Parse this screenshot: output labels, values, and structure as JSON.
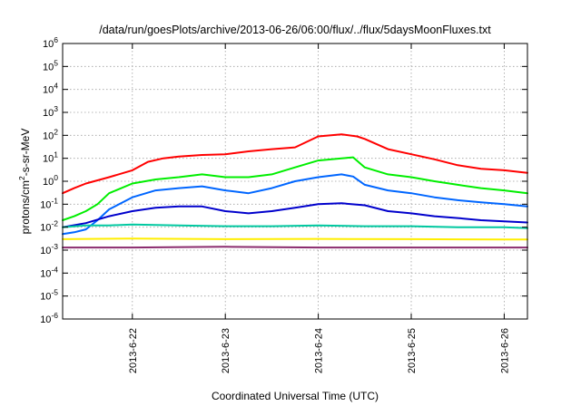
{
  "chart_data": {
    "type": "line",
    "title": "/data/run/goesPlots/archive/2013-06-26/06:00/flux/../flux/5daysMoonFluxes.txt",
    "xlabel": "Coordinated Universal Time (UTC)",
    "ylabel": "protons/cm²-s-sr-MeV",
    "ylabel_parts": {
      "before": "protons/cm",
      "sup": "2",
      "after": "-s-sr-MeV"
    },
    "y_scale": "log",
    "ylim": [
      1e-06,
      1000000.0
    ],
    "y_ticks": [
      {
        "value": 1e-06,
        "base": "10",
        "exp": "-6"
      },
      {
        "value": 1e-05,
        "base": "10",
        "exp": "-5"
      },
      {
        "value": 0.0001,
        "base": "10",
        "exp": "-4"
      },
      {
        "value": 0.001,
        "base": "10",
        "exp": "-3"
      },
      {
        "value": 0.01,
        "base": "10",
        "exp": "-2"
      },
      {
        "value": 0.1,
        "base": "10",
        "exp": "-1"
      },
      {
        "value": 1,
        "base": "10",
        "exp": "0"
      },
      {
        "value": 10,
        "base": "10",
        "exp": "1"
      },
      {
        "value": 100,
        "base": "10",
        "exp": "2"
      },
      {
        "value": 1000,
        "base": "10",
        "exp": "3"
      },
      {
        "value": 10000,
        "base": "10",
        "exp": "4"
      },
      {
        "value": 100000,
        "base": "10",
        "exp": "5"
      },
      {
        "value": 1000000,
        "base": "10",
        "exp": "6"
      }
    ],
    "xlim": [
      "2013-06-21 06:00",
      "2013-06-26 06:00"
    ],
    "x_ticks": [
      {
        "value": "2013-06-22 00:00",
        "label": "2013-6-22"
      },
      {
        "value": "2013-06-23 00:00",
        "label": "2013-6-23"
      },
      {
        "value": "2013-06-24 00:00",
        "label": "2013-6-24"
      },
      {
        "value": "2013-06-25 00:00",
        "label": "2013-6-25"
      },
      {
        "value": "2013-06-26 00:00",
        "label": "2013-6-26"
      }
    ],
    "grid": true,
    "legend": "none",
    "series": [
      {
        "color": "#ff0000",
        "x": [
          "2013-06-21 06:00",
          "2013-06-21 09:00",
          "2013-06-21 12:00",
          "2013-06-21 18:00",
          "2013-06-22 00:00",
          "2013-06-22 04:00",
          "2013-06-22 08:00",
          "2013-06-22 12:00",
          "2013-06-22 18:00",
          "2013-06-23 00:00",
          "2013-06-23 06:00",
          "2013-06-23 12:00",
          "2013-06-23 18:00",
          "2013-06-24 00:00",
          "2013-06-24 06:00",
          "2013-06-24 10:00",
          "2013-06-24 12:00",
          "2013-06-24 18:00",
          "2013-06-25 00:00",
          "2013-06-25 06:00",
          "2013-06-25 12:00",
          "2013-06-25 18:00",
          "2013-06-26 00:00",
          "2013-06-26 06:00"
        ],
        "y": [
          0.3,
          0.5,
          0.8,
          1.5,
          3,
          7,
          10,
          12,
          14,
          15,
          20,
          25,
          30,
          90,
          110,
          90,
          70,
          25,
          15,
          9,
          5,
          3.5,
          3,
          2.3
        ]
      },
      {
        "color": "#00ee00",
        "x": [
          "2013-06-21 06:00",
          "2013-06-21 09:00",
          "2013-06-21 12:00",
          "2013-06-21 15:00",
          "2013-06-21 18:00",
          "2013-06-22 00:00",
          "2013-06-22 06:00",
          "2013-06-22 12:00",
          "2013-06-22 18:00",
          "2013-06-23 00:00",
          "2013-06-23 06:00",
          "2013-06-23 12:00",
          "2013-06-23 18:00",
          "2013-06-24 00:00",
          "2013-06-24 06:00",
          "2013-06-24 09:00",
          "2013-06-24 12:00",
          "2013-06-24 18:00",
          "2013-06-25 00:00",
          "2013-06-25 06:00",
          "2013-06-25 12:00",
          "2013-06-25 18:00",
          "2013-06-26 00:00",
          "2013-06-26 06:00"
        ],
        "y": [
          0.02,
          0.03,
          0.05,
          0.1,
          0.3,
          0.8,
          1.2,
          1.5,
          2,
          1.5,
          1.5,
          2,
          4,
          8,
          10,
          11,
          4,
          2,
          1.5,
          1,
          0.7,
          0.5,
          0.4,
          0.3
        ]
      },
      {
        "color": "#0066ff",
        "x": [
          "2013-06-21 06:00",
          "2013-06-21 09:00",
          "2013-06-21 12:00",
          "2013-06-21 15:00",
          "2013-06-21 18:00",
          "2013-06-22 00:00",
          "2013-06-22 06:00",
          "2013-06-22 12:00",
          "2013-06-22 18:00",
          "2013-06-23 00:00",
          "2013-06-23 06:00",
          "2013-06-23 12:00",
          "2013-06-23 18:00",
          "2013-06-24 00:00",
          "2013-06-24 06:00",
          "2013-06-24 09:00",
          "2013-06-24 12:00",
          "2013-06-24 18:00",
          "2013-06-25 00:00",
          "2013-06-25 06:00",
          "2013-06-25 12:00",
          "2013-06-25 18:00",
          "2013-06-26 00:00",
          "2013-06-26 06:00"
        ],
        "y": [
          0.005,
          0.006,
          0.008,
          0.02,
          0.06,
          0.2,
          0.4,
          0.5,
          0.6,
          0.4,
          0.3,
          0.5,
          1,
          1.5,
          2,
          1.6,
          0.7,
          0.4,
          0.3,
          0.2,
          0.15,
          0.12,
          0.1,
          0.08
        ]
      },
      {
        "color": "#0000cc",
        "x": [
          "2013-06-21 06:00",
          "2013-06-21 12:00",
          "2013-06-21 18:00",
          "2013-06-22 00:00",
          "2013-06-22 06:00",
          "2013-06-22 12:00",
          "2013-06-22 18:00",
          "2013-06-23 00:00",
          "2013-06-23 06:00",
          "2013-06-23 12:00",
          "2013-06-23 18:00",
          "2013-06-24 00:00",
          "2013-06-24 06:00",
          "2013-06-24 12:00",
          "2013-06-24 18:00",
          "2013-06-25 00:00",
          "2013-06-25 06:00",
          "2013-06-25 12:00",
          "2013-06-25 18:00",
          "2013-06-26 00:00",
          "2013-06-26 06:00"
        ],
        "y": [
          0.01,
          0.015,
          0.03,
          0.05,
          0.07,
          0.08,
          0.08,
          0.05,
          0.04,
          0.05,
          0.07,
          0.1,
          0.11,
          0.09,
          0.05,
          0.04,
          0.03,
          0.025,
          0.02,
          0.018,
          0.016
        ]
      },
      {
        "color": "#00c8a0",
        "x": [
          "2013-06-21 06:00",
          "2013-06-21 12:00",
          "2013-06-21 18:00",
          "2013-06-22 00:00",
          "2013-06-22 12:00",
          "2013-06-23 00:00",
          "2013-06-23 12:00",
          "2013-06-24 00:00",
          "2013-06-24 12:00",
          "2013-06-25 00:00",
          "2013-06-25 12:00",
          "2013-06-26 00:00",
          "2013-06-26 06:00"
        ],
        "y": [
          0.01,
          0.012,
          0.012,
          0.013,
          0.012,
          0.011,
          0.011,
          0.012,
          0.011,
          0.011,
          0.01,
          0.01,
          0.009
        ]
      },
      {
        "color": "#ffee00",
        "x": [
          "2013-06-21 06:00",
          "2013-06-22 00:00",
          "2013-06-23 00:00",
          "2013-06-24 00:00",
          "2013-06-25 00:00",
          "2013-06-26 00:00",
          "2013-06-26 06:00"
        ],
        "y": [
          0.003,
          0.0032,
          0.003,
          0.0031,
          0.003,
          0.0029,
          0.0029
        ]
      },
      {
        "color": "#8b2c6e",
        "x": [
          "2013-06-21 06:00",
          "2013-06-22 00:00",
          "2013-06-23 00:00",
          "2013-06-24 00:00",
          "2013-06-25 00:00",
          "2013-06-26 00:00",
          "2013-06-26 06:00"
        ],
        "y": [
          0.0013,
          0.0013,
          0.0014,
          0.0013,
          0.0013,
          0.0013,
          0.0013
        ]
      }
    ]
  }
}
